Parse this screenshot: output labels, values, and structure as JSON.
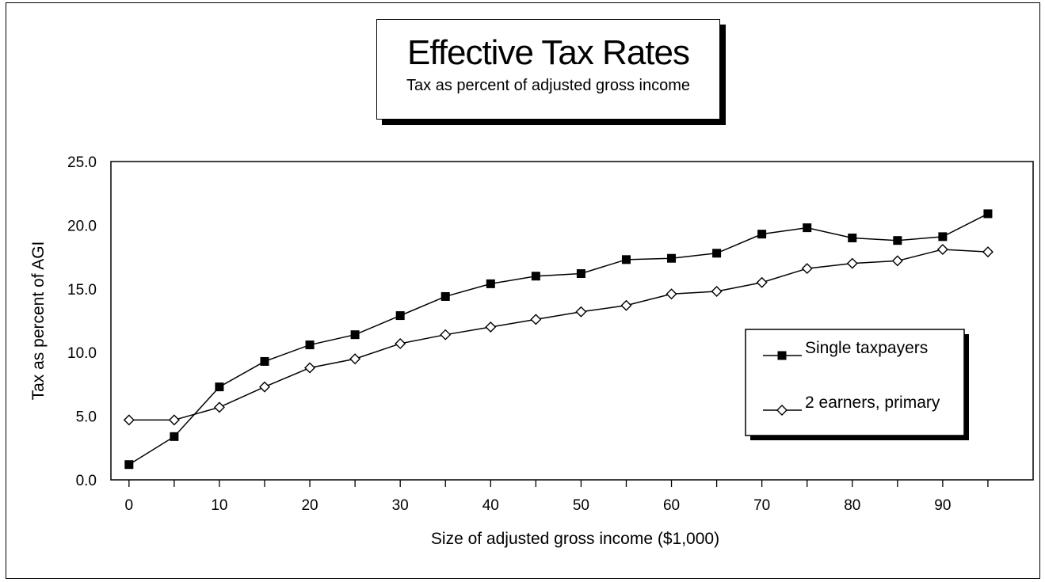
{
  "chart_data": {
    "type": "line",
    "title": "Effective Tax Rates",
    "subtitle": "Tax as percent of adjusted gross income",
    "xlabel": "Size of adjusted gross income ($1,000)",
    "ylabel": "Tax as percent of AGI",
    "x": [
      0,
      5,
      10,
      15,
      20,
      25,
      30,
      35,
      40,
      45,
      50,
      55,
      60,
      65,
      70,
      75,
      80,
      85,
      90,
      95
    ],
    "xticks": [
      0,
      10,
      20,
      30,
      40,
      50,
      60,
      70,
      80,
      90
    ],
    "xlim": [
      -2,
      100
    ],
    "yticks": [
      "0.0",
      "5.0",
      "10.0",
      "15.0",
      "20.0",
      "25.0"
    ],
    "ylim": [
      0,
      25
    ],
    "grid": false,
    "legend_position": "right",
    "series": [
      {
        "name": "Single taxpayers",
        "marker": "filled-square",
        "values": [
          1.2,
          3.4,
          7.3,
          9.3,
          10.6,
          11.4,
          12.9,
          14.4,
          15.4,
          16.0,
          16.2,
          17.3,
          17.4,
          17.8,
          19.3,
          19.8,
          19.0,
          18.8,
          19.1,
          20.9
        ]
      },
      {
        "name": "2 earners, primary",
        "marker": "open-diamond",
        "values": [
          4.7,
          4.7,
          5.7,
          7.3,
          8.8,
          9.5,
          10.7,
          11.4,
          12.0,
          12.6,
          13.2,
          13.7,
          14.6,
          14.8,
          15.5,
          16.6,
          17.0,
          17.2,
          18.1,
          17.9
        ]
      }
    ]
  }
}
